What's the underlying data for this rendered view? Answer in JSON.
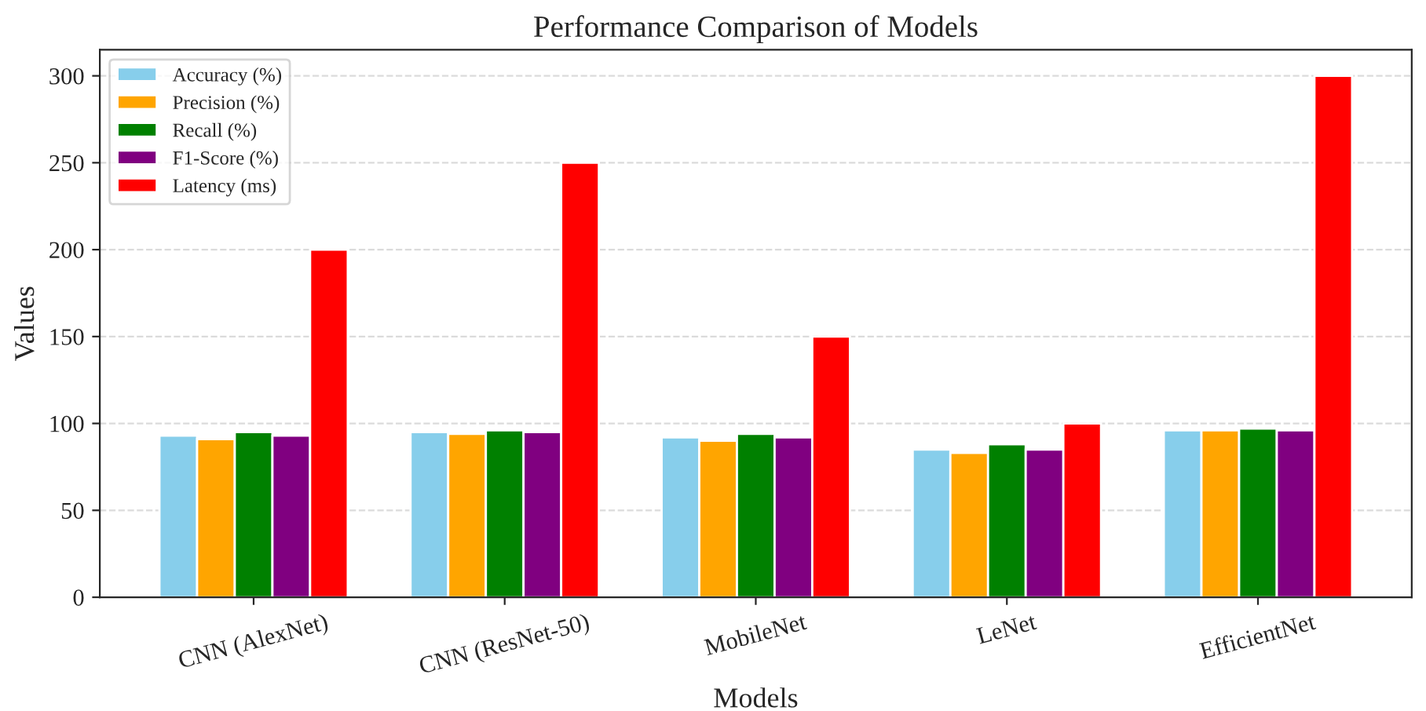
{
  "chart_data": {
    "type": "bar",
    "title": "Performance Comparison of Models",
    "xlabel": "Models",
    "ylabel": "Values",
    "categories": [
      "CNN (AlexNet)",
      "CNN (ResNet-50)",
      "MobileNet",
      "LeNet",
      "EfficientNet"
    ],
    "series": [
      {
        "name": "Accuracy (%)",
        "color": "#87ceeb",
        "values": [
          93,
          95,
          92,
          85,
          96
        ]
      },
      {
        "name": "Precision (%)",
        "color": "#ffa500",
        "values": [
          91,
          94,
          90,
          83,
          96
        ]
      },
      {
        "name": "Recall (%)",
        "color": "#008000",
        "values": [
          95,
          96,
          94,
          88,
          97
        ]
      },
      {
        "name": "F1-Score (%)",
        "color": "#800080",
        "values": [
          93,
          95,
          92,
          85,
          96
        ]
      },
      {
        "name": "Latency (ms)",
        "color": "#ff0000",
        "values": [
          200,
          250,
          150,
          100,
          300
        ]
      }
    ],
    "ylim": [
      0,
      315
    ],
    "yticks": [
      0,
      50,
      100,
      150,
      200,
      250,
      300
    ],
    "grid": "y",
    "legend": "top left"
  }
}
